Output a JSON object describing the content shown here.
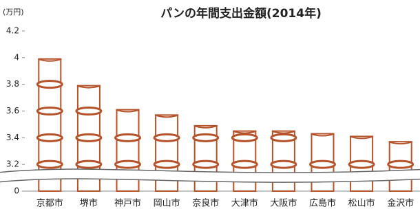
{
  "chart_data": {
    "type": "bar",
    "title": "パンの年間支出金額(2014年)",
    "unit": "(万円)",
    "categories": [
      "京都市",
      "堺市",
      "神戸市",
      "岡山市",
      "奈良市",
      "大津市",
      "大阪市",
      "広島市",
      "松山市",
      "金沢市"
    ],
    "values": [
      3.99,
      3.79,
      3.61,
      3.57,
      3.49,
      3.45,
      3.45,
      3.43,
      3.41,
      3.37
    ],
    "color": "#b5522a",
    "ylim": [
      0,
      4.2
    ],
    "yticks": [
      0,
      3.2,
      3.4,
      3.6,
      3.8,
      4,
      4.2
    ],
    "axis_break": true
  }
}
